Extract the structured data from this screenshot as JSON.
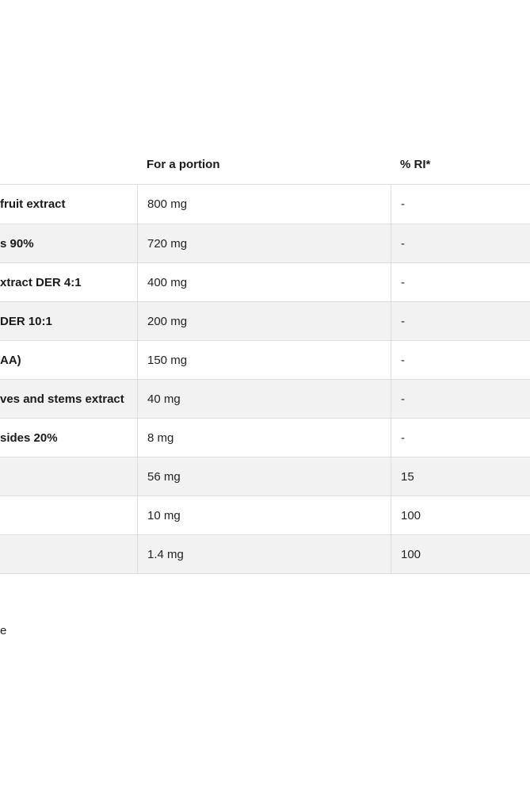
{
  "table": {
    "header": {
      "col_ingredient": "",
      "col_portion": "For a portion",
      "col_ri": "% RI*"
    },
    "rows": [
      {
        "name": "fruit extract",
        "portion": "800 mg",
        "ri": "-"
      },
      {
        "name": "s 90%",
        "portion": "720 mg",
        "ri": "-"
      },
      {
        "name": "xtract DER 4:1",
        "portion": "400 mg",
        "ri": "-"
      },
      {
        "name": "DER 10:1",
        "portion": "200 mg",
        "ri": "-"
      },
      {
        "name": "AA)",
        "portion": "150 mg",
        "ri": "-"
      },
      {
        "name": "ves and stems extract",
        "portion": "40 mg",
        "ri": "-"
      },
      {
        "name": "sides 20%",
        "portion": "8 mg",
        "ri": "-"
      },
      {
        "name": "",
        "portion": "56 mg",
        "ri": "15"
      },
      {
        "name": "",
        "portion": "10 mg",
        "ri": "100"
      },
      {
        "name": "",
        "portion": "1.4 mg",
        "ri": "100"
      }
    ]
  },
  "footnote": {
    "fragment": "e"
  },
  "colors": {
    "stripe": "#f2f2f2",
    "border": "#dcdcdc",
    "text": "#222222",
    "bold_text": "#1a1a1a",
    "background": "#ffffff"
  }
}
